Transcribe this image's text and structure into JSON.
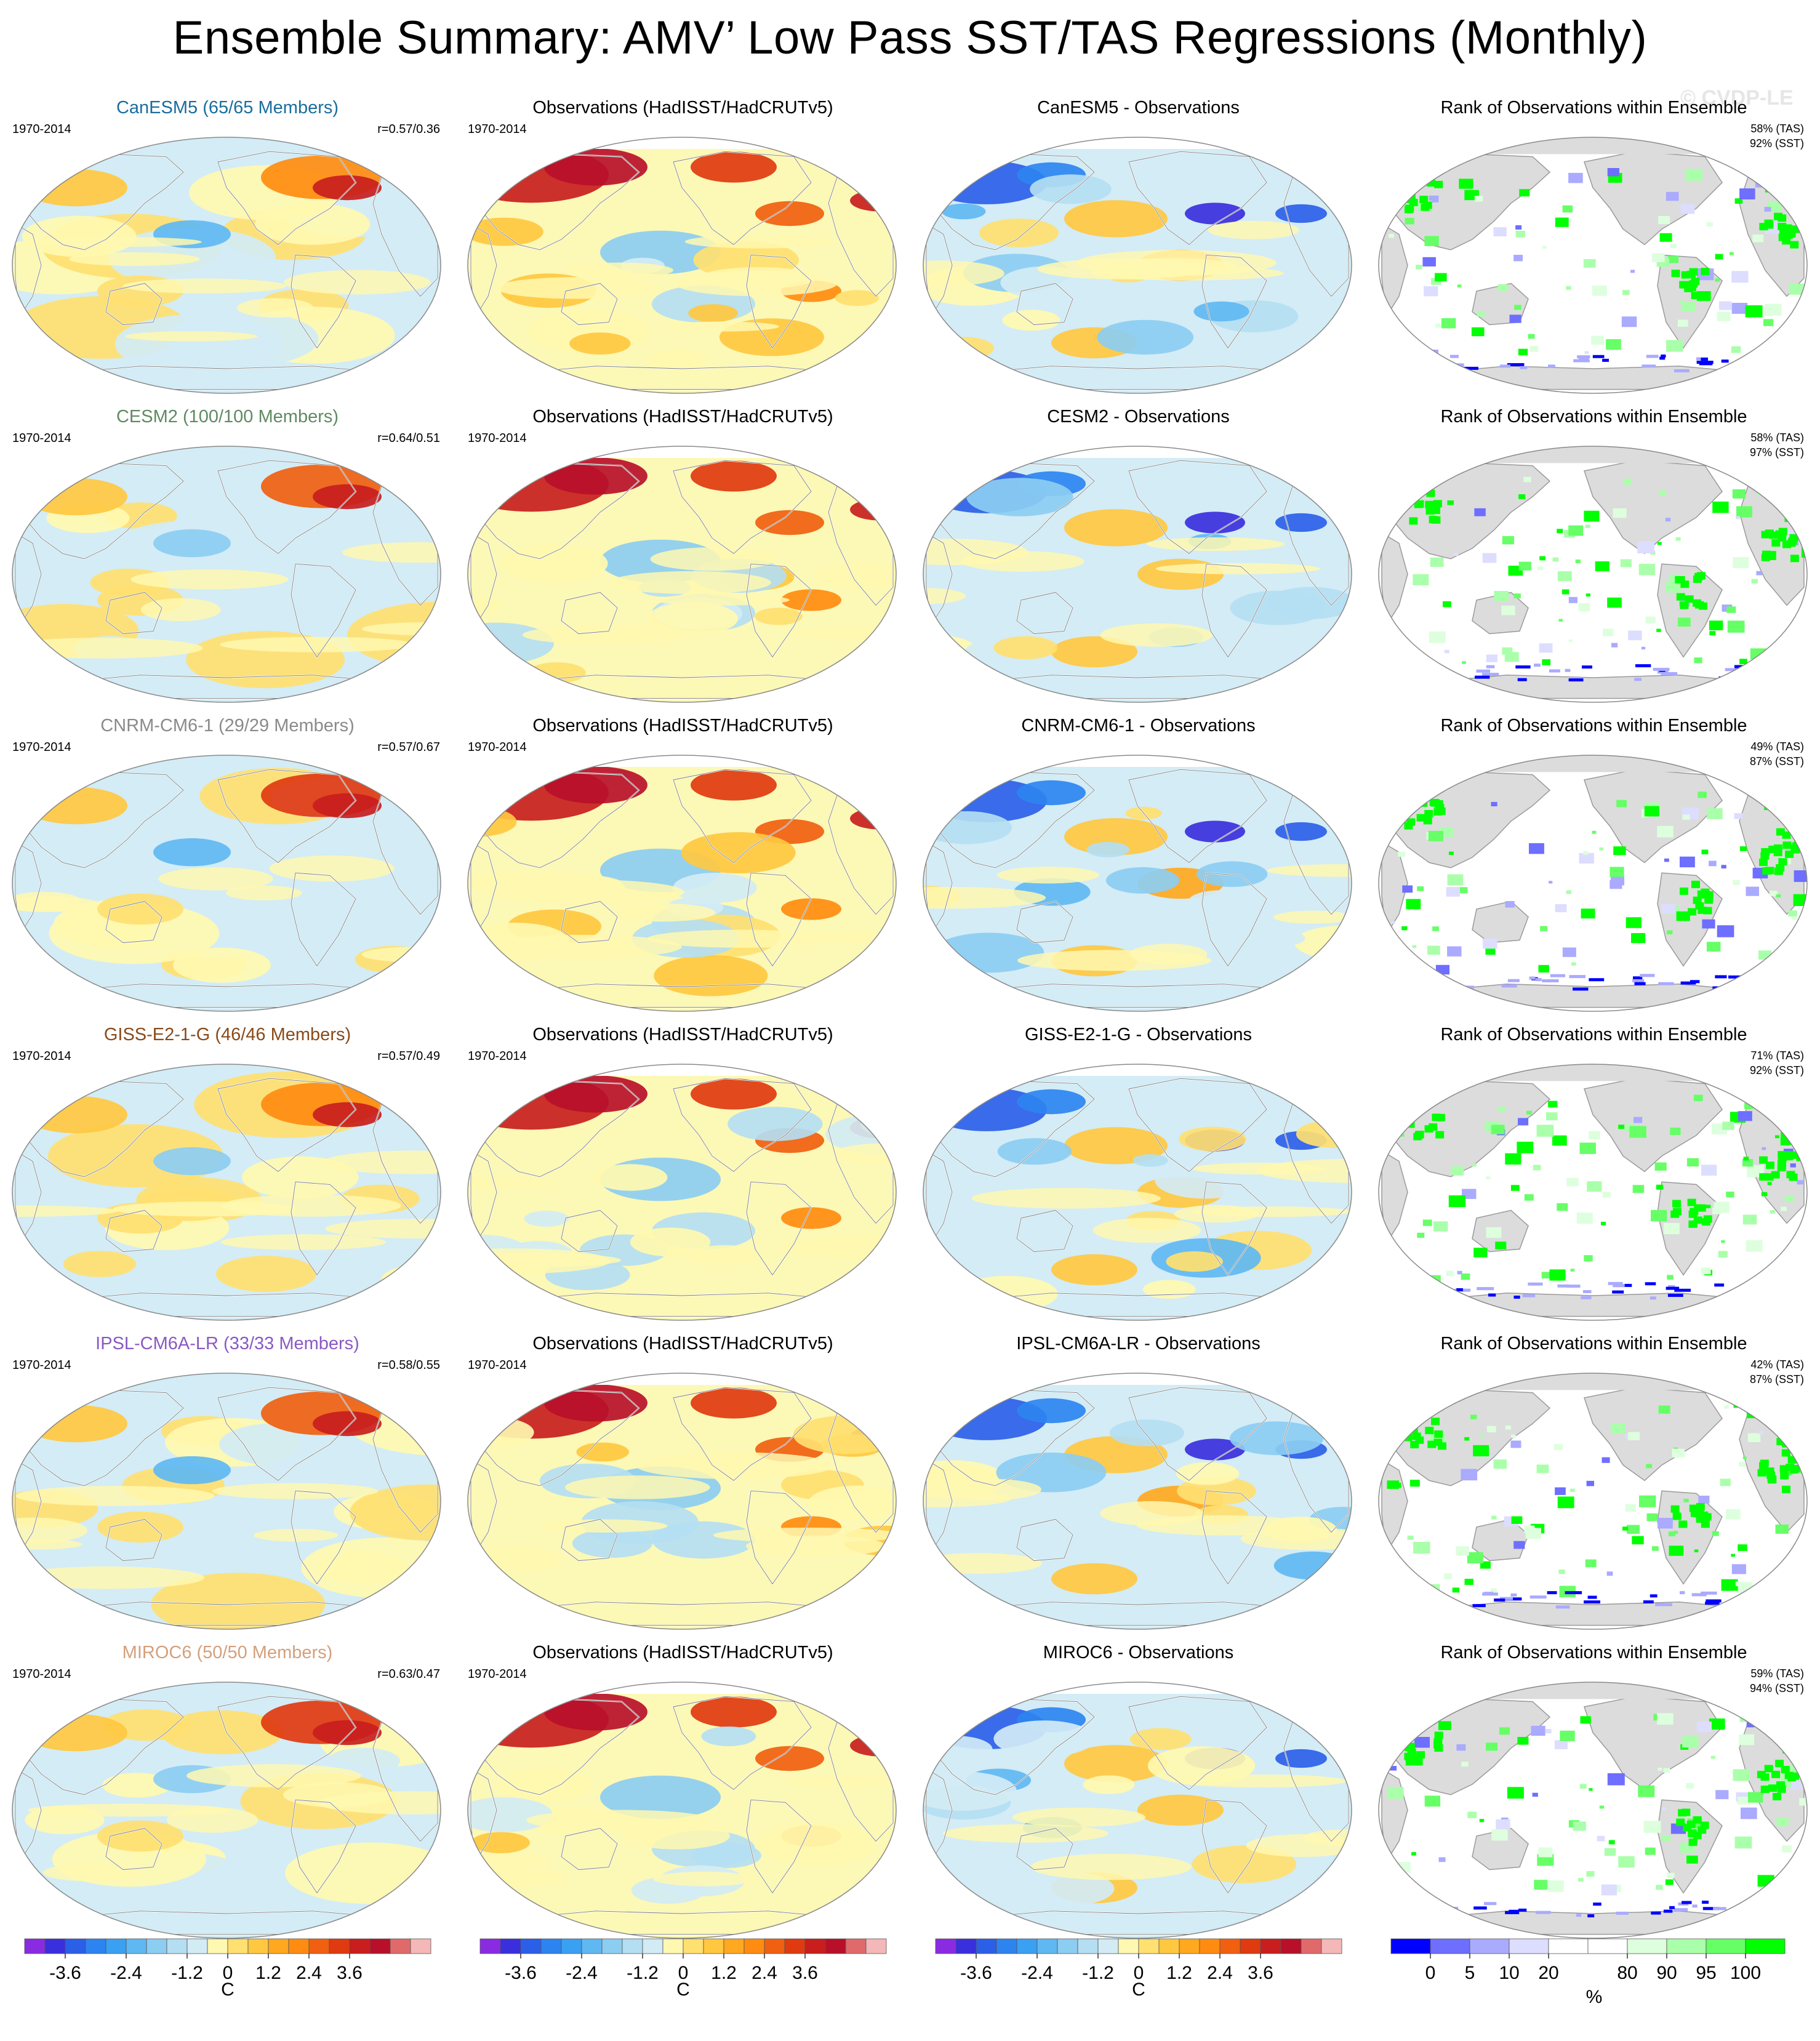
{
  "title": "Ensemble Summary: AMV’ Low Pass SST/TAS Regressions (Monthly)",
  "watermark": "© CVDP-LE",
  "period": "1970-2014",
  "obs_title": "Observations (HadISST/HadCRUTv5)",
  "rank_title": "Rank of Observations within Ensemble",
  "rows": [
    {
      "model": "CanESM5 (65/65 Members)",
      "model_color": "#1a6d9e",
      "r": "r=0.57/0.36",
      "diff": "CanESM5 - Observations",
      "tas": "58% (TAS)",
      "sst": "92% (SST)"
    },
    {
      "model": "CESM2 (100/100 Members)",
      "model_color": "#5f8a62",
      "r": "r=0.64/0.51",
      "diff": "CESM2 - Observations",
      "tas": "58% (TAS)",
      "sst": "97% (SST)"
    },
    {
      "model": "CNRM-CM6-1 (29/29 Members)",
      "model_color": "#8a8a8a",
      "r": "r=0.57/0.67",
      "diff": "CNRM-CM6-1 - Observations",
      "tas": "49% (TAS)",
      "sst": "87% (SST)"
    },
    {
      "model": "GISS-E2-1-G (46/46 Members)",
      "model_color": "#8a4a18",
      "r": "r=0.57/0.49",
      "diff": "GISS-E2-1-G - Observations",
      "tas": "71% (TAS)",
      "sst": "92% (SST)"
    },
    {
      "model": "IPSL-CM6A-LR (33/33 Members)",
      "model_color": "#8a5ac2",
      "r": "r=0.58/0.55",
      "diff": "IPSL-CM6A-LR - Observations",
      "tas": "42% (TAS)",
      "sst": "87% (SST)"
    },
    {
      "model": "MIROC6 (50/50 Members)",
      "model_color": "#d4a07c",
      "r": "r=0.63/0.47",
      "diff": "MIROC6 - Observations",
      "tas": "59% (TAS)",
      "sst": "94% (SST)"
    }
  ],
  "colorbars": {
    "temp": {
      "ticks": [
        "-3.6",
        "-2.4",
        "-1.2",
        "0",
        "1.2",
        "2.4",
        "3.6"
      ],
      "unit": "C",
      "colors": [
        "#8a2be2",
        "#3a2fdc",
        "#2b5fe8",
        "#2d84f0",
        "#3aa0f2",
        "#60b8f2",
        "#8ccdf2",
        "#b4def2",
        "#d2ebf5",
        "#fff8b0",
        "#ffe070",
        "#ffc840",
        "#ffa820",
        "#ff8c10",
        "#f06010",
        "#e03a10",
        "#c81e1e",
        "#b8102a",
        "#e06a6a",
        "#f4b8b8"
      ]
    },
    "rank": {
      "ticks": [
        "0",
        "5",
        "10",
        "20",
        "80",
        "90",
        "95",
        "100"
      ],
      "unit": "%",
      "colors": [
        "#0000ff",
        "#6e6eff",
        "#aaaaff",
        "#ddddff",
        "#ffffff",
        "#ffffff",
        "#ddffdd",
        "#aaffaa",
        "#66ff66",
        "#00ff00"
      ]
    }
  }
}
